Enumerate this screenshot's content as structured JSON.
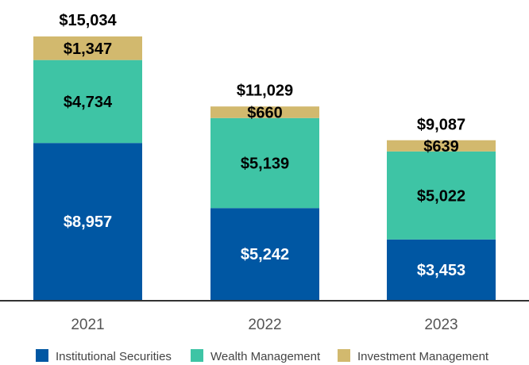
{
  "chart_data": {
    "type": "bar",
    "stacked": true,
    "categories": [
      "2021",
      "2022",
      "2023"
    ],
    "series": [
      {
        "name": "Institutional Securities",
        "values": [
          8957,
          5242,
          3453
        ],
        "labels": [
          "$8,957",
          "$5,242",
          "$3,453"
        ],
        "color": "#0057A3",
        "label_color": "#ffffff"
      },
      {
        "name": "Wealth Management",
        "values": [
          4734,
          5139,
          5022
        ],
        "labels": [
          "$4,734",
          "$5,139",
          "$5,022"
        ],
        "color": "#3EC4A5",
        "label_color": "#000000"
      },
      {
        "name": "Investment Management",
        "values": [
          1347,
          660,
          639
        ],
        "labels": [
          "$1,347",
          "$660",
          "$639"
        ],
        "color": "#D2B96E",
        "label_color": "#000000"
      }
    ],
    "totals": [
      15034,
      11029,
      9087
    ],
    "total_labels": [
      "$15,034",
      "$11,029",
      "$9,087"
    ],
    "ylim": [
      0,
      15034
    ],
    "grid": false,
    "legend_position": "bottom"
  }
}
